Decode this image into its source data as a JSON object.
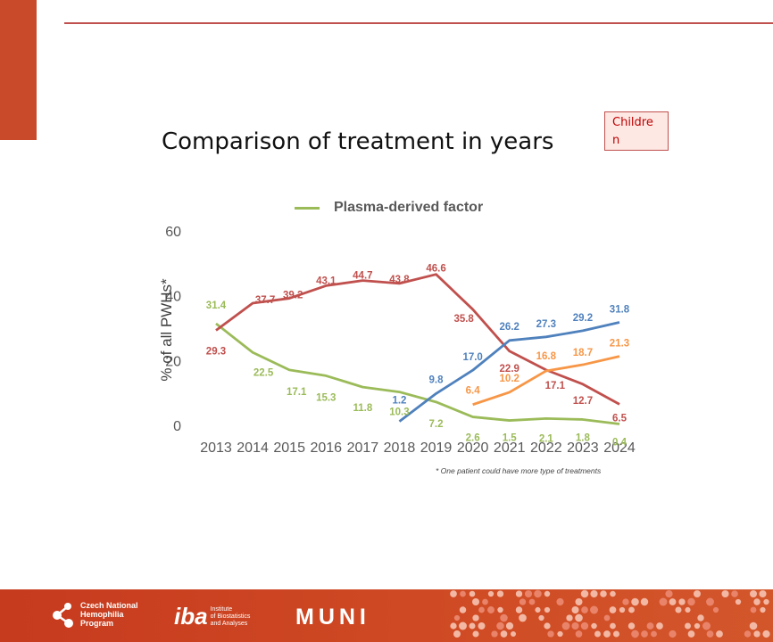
{
  "slide": {
    "title": "Comparison of treatment in years",
    "badge": "Children",
    "footnote": "* One patient could have more type of treatments"
  },
  "logos": {
    "cnhp_lines": [
      "Czech National",
      "Hemophilia",
      "Program"
    ],
    "iba_mark": "iba",
    "iba_lines": [
      "Institute",
      "of Biostatistics",
      "and Analyses"
    ],
    "muni": "MUNI"
  },
  "colors": {
    "accent": "#c0504d",
    "bar": "#c94a2a",
    "footer": "#c63a1e",
    "plasma": "#9bbb59",
    "red_series": "#c0504d",
    "blue_series": "#4f81bd",
    "orange_series": "#f79646"
  },
  "chart_data": {
    "type": "line",
    "ylabel": "% of all PWHs*",
    "ylim": [
      0,
      60
    ],
    "yticks": [
      0,
      20,
      40,
      60
    ],
    "x": [
      "2013",
      "2014",
      "2015",
      "2016",
      "2017",
      "2018",
      "2019",
      "2020",
      "2021",
      "2022",
      "2023",
      "2024"
    ],
    "legend": {
      "position": "top",
      "shown": [
        "Plasma-derived factor"
      ]
    },
    "grid": false,
    "series": [
      {
        "name": "Plasma-derived factor",
        "color": "#9bbb59",
        "values": [
          31.4,
          22.5,
          17.1,
          15.3,
          11.8,
          10.3,
          7.2,
          2.6,
          1.5,
          2.1,
          1.8,
          0.4
        ]
      },
      {
        "color": "#c0504d",
        "values": [
          29.3,
          37.7,
          39.2,
          43.1,
          44.7,
          43.8,
          46.6,
          35.8,
          22.9,
          17.1,
          12.7,
          6.5
        ]
      },
      {
        "color": "#4f81bd",
        "values": [
          null,
          null,
          null,
          null,
          null,
          1.2,
          9.8,
          17.0,
          26.2,
          27.3,
          29.2,
          31.8
        ]
      },
      {
        "color": "#f79646",
        "values": [
          null,
          null,
          null,
          null,
          null,
          null,
          null,
          6.4,
          10.2,
          16.8,
          18.7,
          21.3
        ]
      }
    ],
    "data_labels": [
      [
        "31.4",
        "22.5",
        "17.1",
        "15.3",
        "11.8",
        "10.3",
        "7.2",
        "2.6",
        "1.5",
        "2.1",
        "1.8",
        "0.4"
      ],
      [
        "29.3",
        "37.7",
        "39.2",
        "43.1",
        "44.7",
        "43.8",
        "46.6",
        "35.8",
        "22.9",
        "17.1",
        "12.7",
        "6.5"
      ],
      [
        null,
        null,
        null,
        null,
        null,
        "1.2",
        "9.8",
        "17.0",
        "26.2",
        "27.3",
        "29.2",
        "31.8"
      ],
      [
        null,
        null,
        null,
        null,
        null,
        null,
        null,
        "6.4",
        "10.2",
        "16.8",
        "18.7",
        "21.3"
      ]
    ]
  }
}
